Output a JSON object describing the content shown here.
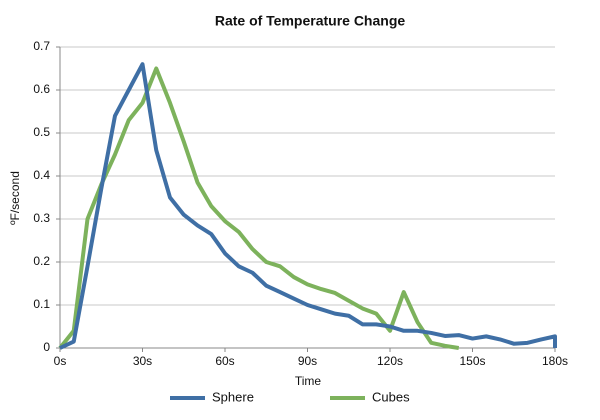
{
  "chart_data": {
    "type": "line",
    "title": "Rate of Temperature Change",
    "x_label": "Time",
    "y_label": "ºF/second",
    "xlim": [
      0,
      180
    ],
    "ylim": [
      0,
      0.7
    ],
    "xticks": [
      {
        "value": 0,
        "label": "0s"
      },
      {
        "value": 30,
        "label": "30s"
      },
      {
        "value": 60,
        "label": "60s"
      },
      {
        "value": 90,
        "label": "90s"
      },
      {
        "value": 120,
        "label": "120s"
      },
      {
        "value": 150,
        "label": "150s"
      },
      {
        "value": 180,
        "label": "180s"
      }
    ],
    "yticks": [
      0,
      0.1,
      0.2,
      0.3,
      0.4,
      0.5,
      0.6,
      0.7
    ],
    "grid": true,
    "series": [
      {
        "name": "Sphere",
        "color": "#3f6fa5",
        "x": [
          0,
          5,
          10,
          15,
          20,
          25,
          30,
          35,
          40,
          45,
          50,
          55,
          60,
          65,
          70,
          75,
          80,
          85,
          90,
          95,
          100,
          105,
          110,
          115,
          120,
          125,
          130,
          135,
          140,
          145,
          150,
          155,
          160,
          165,
          170,
          175,
          180,
          180
        ],
        "values": [
          0,
          0.015,
          0.19,
          0.37,
          0.54,
          0.6,
          0.66,
          0.46,
          0.35,
          0.31,
          0.285,
          0.265,
          0.22,
          0.19,
          0.175,
          0.145,
          0.13,
          0.115,
          0.1,
          0.09,
          0.08,
          0.075,
          0.055,
          0.055,
          0.05,
          0.04,
          0.04,
          0.035,
          0.028,
          0.03,
          0.022,
          0.027,
          0.02,
          0.01,
          0.012,
          0.02,
          0.027,
          0
        ]
      },
      {
        "name": "Cubes",
        "color": "#7db25c",
        "x": [
          0,
          5,
          10,
          15,
          20,
          25,
          30,
          35,
          40,
          45,
          50,
          55,
          60,
          65,
          70,
          75,
          80,
          85,
          90,
          95,
          100,
          105,
          110,
          115,
          120,
          125,
          130,
          135,
          140,
          145
        ],
        "values": [
          0,
          0.04,
          0.3,
          0.38,
          0.45,
          0.53,
          0.57,
          0.65,
          0.57,
          0.48,
          0.385,
          0.33,
          0.295,
          0.27,
          0.23,
          0.2,
          0.19,
          0.165,
          0.148,
          0.137,
          0.128,
          0.11,
          0.092,
          0.08,
          0.04,
          0.13,
          0.06,
          0.012,
          0.005,
          0
        ]
      }
    ]
  }
}
